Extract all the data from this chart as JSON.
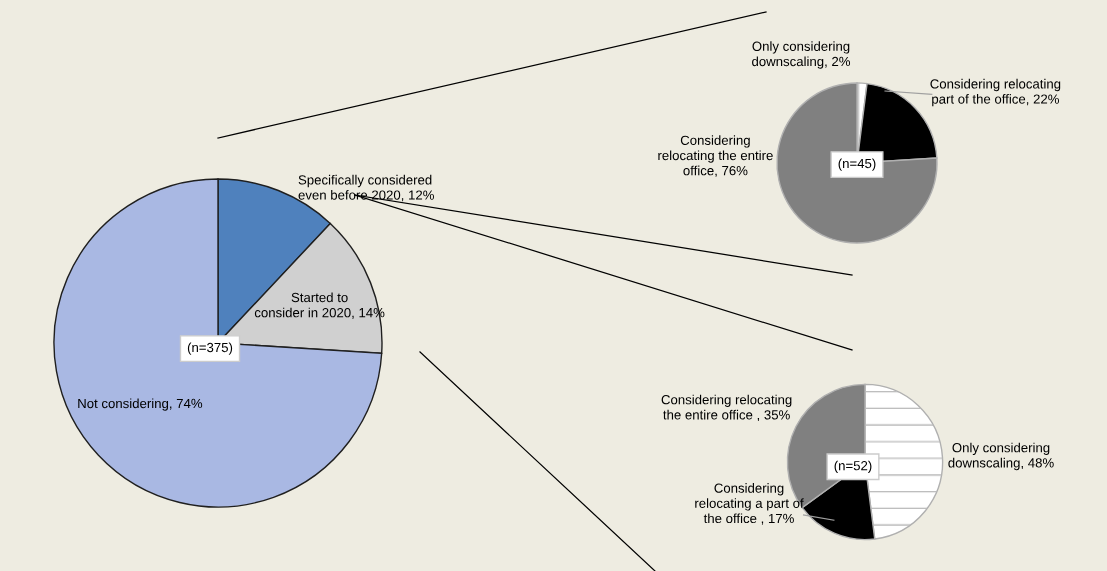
{
  "chart_data": [
    {
      "type": "pie",
      "categories": [
        "Specifically considered\neven before 2020",
        "Started to\nconsider in 2020",
        "Not considering"
      ],
      "values": [
        12,
        14,
        74
      ],
      "value_labels": [
        "12%",
        "14%",
        "74%"
      ],
      "colors": [
        "#4f81bd",
        "#d0d0d0",
        "#a9b8e3"
      ],
      "annotations": [
        "(n=375)"
      ]
    },
    {
      "type": "pie",
      "categories": [
        "Only considering\ndownscaling",
        "Considering relocating\npart of the office",
        "Considering\nrelocating the entire\noffice"
      ],
      "values": [
        2,
        22,
        76
      ],
      "value_labels": [
        "2%",
        "22%",
        "76%"
      ],
      "colors": [
        "#ffffff",
        "#000000",
        "#808080"
      ],
      "annotations": [
        "(n=45)"
      ]
    },
    {
      "type": "pie",
      "categories": [
        "Only considering\ndownscaling",
        "Considering\nrelocating a part of\nthe office ",
        "Considering relocating\nthe entire office "
      ],
      "values": [
        48,
        17,
        35
      ],
      "value_labels": [
        "48%",
        "17%",
        "35%"
      ],
      "colors": [
        "#ffffff",
        "#000000",
        "#808080"
      ],
      "annotations": [
        "(n=52)"
      ]
    }
  ]
}
